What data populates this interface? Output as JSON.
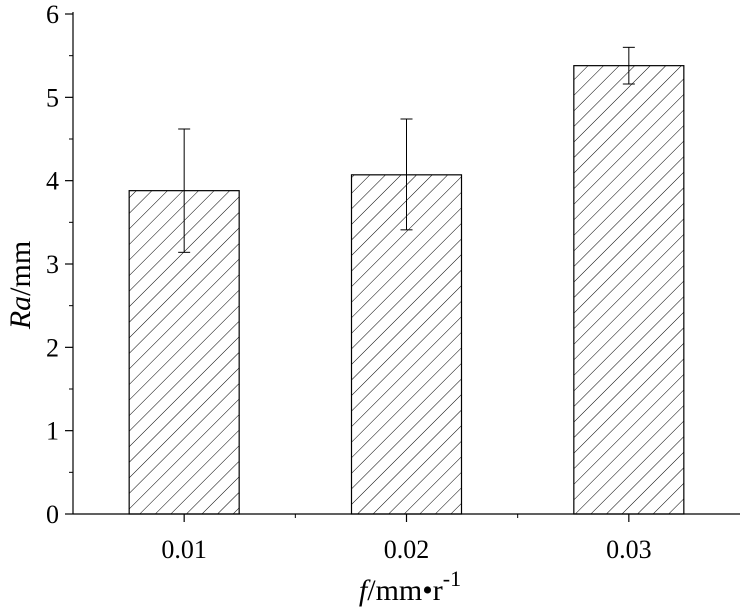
{
  "chart_data": {
    "type": "bar",
    "categories": [
      "0.01",
      "0.02",
      "0.03"
    ],
    "values": [
      3.88,
      4.07,
      5.38
    ],
    "error_bars": [
      {
        "low": 3.14,
        "high": 4.62
      },
      {
        "low": 3.41,
        "high": 4.74
      },
      {
        "low": 5.16,
        "high": 5.6
      }
    ],
    "title": "",
    "xlabel": {
      "italic": "f",
      "text": "/mm•r",
      "superscript": "-1"
    },
    "ylabel": {
      "italic": "Ra",
      "text": "/mm"
    },
    "ylim": [
      0,
      6
    ],
    "yticks": [
      "0",
      "1",
      "2",
      "3",
      "4",
      "5",
      "6"
    ],
    "grid": false,
    "legend": "none",
    "bar_fill": "hatched",
    "colors": {
      "bar_stroke": "#000000",
      "hatch": "#000000",
      "axis": "#000000",
      "background": "#ffffff"
    }
  }
}
